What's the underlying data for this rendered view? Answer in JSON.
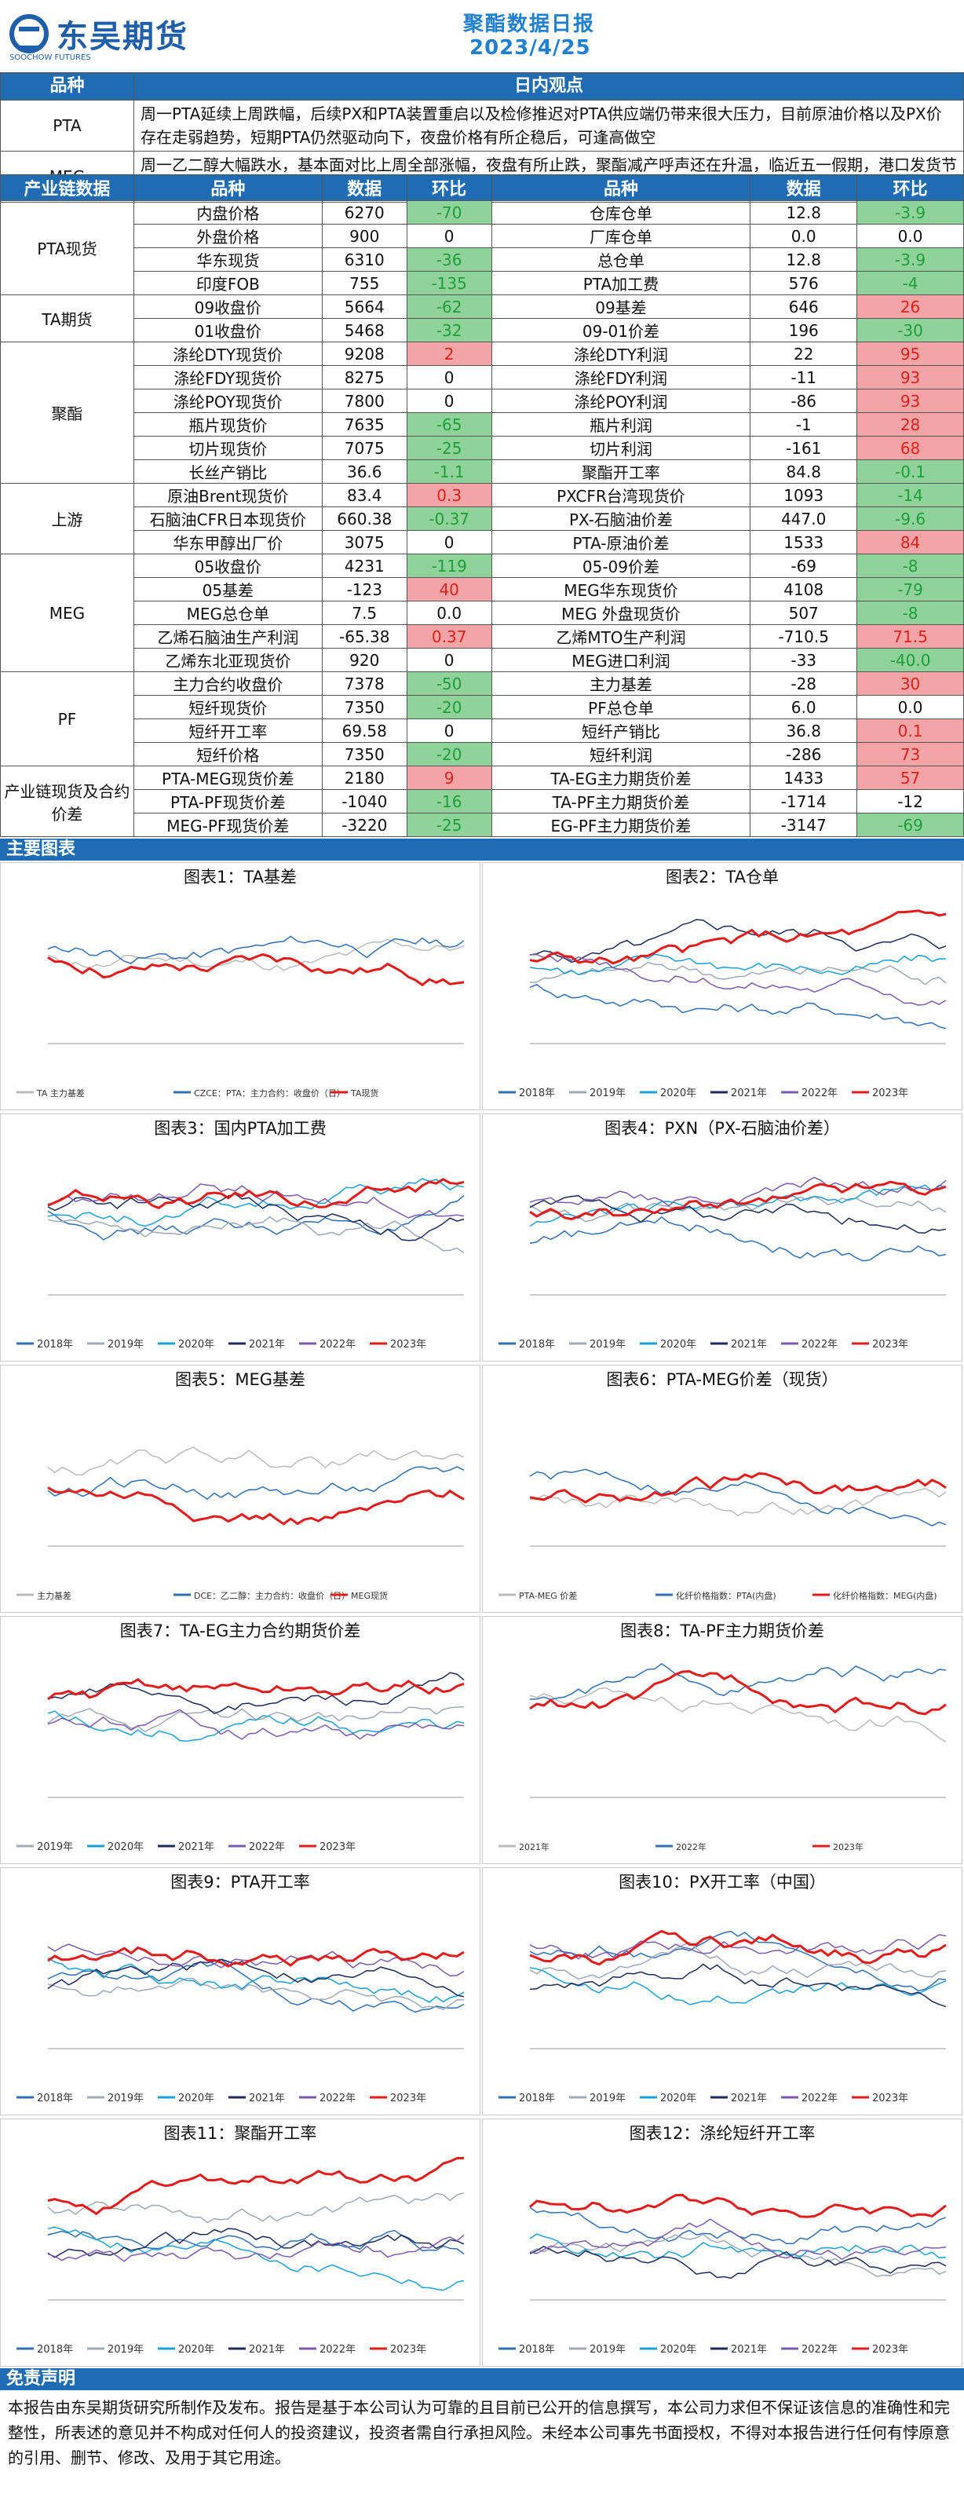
{
  "header": {
    "brand": "东吴期货",
    "brand_sub": "SOOCHOW FUTURES",
    "title": "聚酯数据日报",
    "date": "2023/4/25"
  },
  "views": {
    "h1": "品种",
    "h2": "日内观点",
    "rows": [
      {
        "k": "PTA",
        "v": "周一PTA延续上周跌幅，后续PX和PTA装置重启以及检修推迟对PTA供应端仍带来很大压力，目前原油价格以及PX价存在走弱趋势，短期PTA仍然驱动向下，夜盘价格有所企稳后，可逢高做空"
      },
      {
        "k": "MEG",
        "v": "周一乙二醇大幅跌水，基本面对比上周全部涨幅，夜盘有所止跌，聚酯减产呼声还在升温，临近五一假期，港口发货节奏可能稍有扰乱，乙二醇预计本周仍然以偏弱震荡为主"
      }
    ]
  },
  "data_header": {
    "c1": "产业链数据",
    "c2": "品种",
    "c3": "数据",
    "c4": "环比",
    "c5": "品种",
    "c6": "数据",
    "c7": "环比"
  },
  "groups": [
    {
      "name": "PTA现货",
      "rows": [
        [
          "内盘价格",
          "6270",
          "-70",
          "g",
          "仓库仓单",
          "12.8",
          "-3.9",
          "g"
        ],
        [
          "外盘价格",
          "900",
          "0",
          "",
          "厂库仓单",
          "0.0",
          "0.0",
          ""
        ],
        [
          "华东现货",
          "6310",
          "-36",
          "g",
          "总仓单",
          "12.8",
          "-3.9",
          "g"
        ],
        [
          "印度FOB",
          "755",
          "-135",
          "g",
          "PTA加工费",
          "576",
          "-4",
          "g"
        ]
      ]
    },
    {
      "name": "TA期货",
      "rows": [
        [
          "09收盘价",
          "5664",
          "-62",
          "g",
          "09基差",
          "646",
          "26",
          "r"
        ],
        [
          "01收盘价",
          "5468",
          "-32",
          "g",
          "09-01价差",
          "196",
          "-30",
          "g"
        ]
      ]
    },
    {
      "name": "聚酯",
      "rows": [
        [
          "涤纶DTY现货价",
          "9208",
          "2",
          "r",
          "涤纶DTY利润",
          "22",
          "95",
          "r"
        ],
        [
          "涤纶FDY现货价",
          "8275",
          "0",
          "",
          "涤纶FDY利润",
          "-11",
          "93",
          "r"
        ],
        [
          "涤纶POY现货价",
          "7800",
          "0",
          "",
          "涤纶POY利润",
          "-86",
          "93",
          "r"
        ],
        [
          "瓶片现货价",
          "7635",
          "-65",
          "g",
          "瓶片利润",
          "-1",
          "28",
          "r"
        ],
        [
          "切片现货价",
          "7075",
          "-25",
          "g",
          "切片利润",
          "-161",
          "68",
          "r"
        ],
        [
          "长丝产销比",
          "36.6",
          "-1.1",
          "g",
          "聚酯开工率",
          "84.8",
          "-0.1",
          "g"
        ]
      ]
    },
    {
      "name": "上游",
      "rows": [
        [
          "原油Brent现货价",
          "83.4",
          "0.3",
          "r",
          "PXCFR台湾现货价",
          "1093",
          "-14",
          "g"
        ],
        [
          "石脑油CFR日本现货价",
          "660.38",
          "-0.37",
          "g",
          "PX-石脑油价差",
          "447.0",
          "-9.6",
          "g"
        ],
        [
          "华东甲醇出厂价",
          "3075",
          "0",
          "",
          "PTA-原油价差",
          "1533",
          "84",
          "r"
        ]
      ]
    },
    {
      "name": "MEG",
      "rows": [
        [
          "05收盘价",
          "4231",
          "-119",
          "g",
          "05-09价差",
          "-69",
          "-8",
          "g"
        ],
        [
          "05基差",
          "-123",
          "40",
          "r",
          "MEG华东现货价",
          "4108",
          "-79",
          "g"
        ],
        [
          "MEG总仓单",
          "7.5",
          "0.0",
          "",
          "MEG 外盘现货价",
          "507",
          "-8",
          "g"
        ],
        [
          "乙烯石脑油生产利润",
          "-65.38",
          "0.37",
          "r",
          "乙烯MTO生产利润",
          "-710.5",
          "71.5",
          "r"
        ],
        [
          "乙烯东北亚现货价",
          "920",
          "0",
          "",
          "MEG进口利润",
          "-33",
          "-40.0",
          "g"
        ]
      ]
    },
    {
      "name": "PF",
      "rows": [
        [
          "主力合约收盘价",
          "7378",
          "-50",
          "g",
          "主力基差",
          "-28",
          "30",
          "r"
        ],
        [
          "短纤现货价",
          "7350",
          "-20",
          "g",
          "PF总仓单",
          "6.0",
          "0.0",
          ""
        ],
        [
          "短纤开工率",
          "69.58",
          "0",
          "",
          "短纤产销比",
          "36.8",
          "0.1",
          "r"
        ],
        [
          "短纤价格",
          "7350",
          "-20",
          "g",
          "短纤利润",
          "-286",
          "73",
          "r"
        ]
      ]
    },
    {
      "name": "产业链现货及合约价差",
      "rows": [
        [
          "PTA-MEG现货价差",
          "2180",
          "9",
          "r",
          "TA-EG主力期货价差",
          "1433",
          "57",
          "r"
        ],
        [
          "PTA-PF现货价差",
          "-1040",
          "-16",
          "g",
          "TA-PF主力期货价差",
          "-1714",
          "-12",
          ""
        ],
        [
          "MEG-PF现货价差",
          "-3220",
          "-25",
          "g",
          "EG-PF主力期货价差",
          "-3147",
          "-69",
          "g"
        ]
      ]
    }
  ],
  "charts_header": "主要图表",
  "charts": [
    {
      "title": "图表1：TA基差",
      "legend": [
        "TA  主力基差",
        "CZCE：PTA：主力合约：收盘价（日）",
        "TA现货"
      ]
    },
    {
      "title": "图表2：TA仓单",
      "legend": [
        "2018年",
        "2019年",
        "2020年",
        "2021年",
        "2022年",
        "2023年"
      ]
    },
    {
      "title": "图表3：国内PTA加工费",
      "legend": [
        "2018年",
        "2019年",
        "2020年",
        "2021年",
        "2022年",
        "2023年"
      ]
    },
    {
      "title": "图表4：PXN（PX-石脑油价差）",
      "legend": [
        "2018年",
        "2019年",
        "2020年",
        "2021年",
        "2022年",
        "2023年"
      ]
    },
    {
      "title": "图表5：MEG基差",
      "legend": [
        "主力基差",
        "DCE：乙二醇：主力合约：收盘价（日）",
        "MEG现货"
      ]
    },
    {
      "title": "图表6：PTA-MEG价差（现货）",
      "legend": [
        "PTA-MEG 价差",
        "化纤价格指数：PTA(内盘)",
        "化纤价格指数：MEG(内盘)"
      ]
    },
    {
      "title": "图表7：TA-EG主力合约期货价差",
      "legend": [
        "2019年",
        "2020年",
        "2021年",
        "2022年",
        "2023年"
      ]
    },
    {
      "title": "图表8：TA-PF主力期货价差",
      "legend": [
        "2021年",
        "2022年",
        "2023年"
      ]
    },
    {
      "title": "图表9：PTA开工率",
      "legend": [
        "2018年",
        "2019年",
        "2020年",
        "2021年",
        "2022年",
        "2023年"
      ]
    },
    {
      "title": "图表10：PX开工率（中国）",
      "legend": [
        "2018年",
        "2019年",
        "2020年",
        "2021年",
        "2022年",
        "2023年"
      ]
    },
    {
      "title": "图表11：聚酯开工率",
      "legend": [
        "2018年",
        "2019年",
        "2020年",
        "2021年",
        "2022年",
        "2023年"
      ]
    },
    {
      "title": "图表12：涤纶短纤开工率",
      "legend": [
        "2018年",
        "2019年",
        "2020年",
        "2021年",
        "2022年",
        "2023年"
      ]
    }
  ],
  "disclaimer": {
    "title": "免责声明",
    "text": "本报告由东吴期货研究所制作及发布。报告是基于本公司认为可靠的且目前已公开的信息撰写，本公司力求但不保证该信息的准确性和完整性，所表述的意见并不构成对任何人的投资建议，投资者需自行承担风险。未经本公司事先书面授权，不得对本报告进行任何有悖原意的引用、删节、修改、及用于其它用途。"
  }
}
